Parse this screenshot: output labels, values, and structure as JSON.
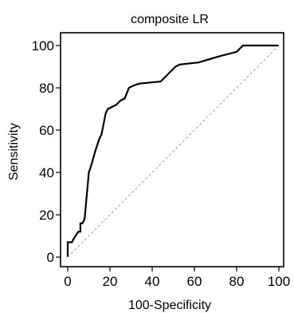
{
  "chart_data": {
    "type": "line",
    "title": "composite LR",
    "xlabel": "100-Specificity",
    "ylabel": "Sensitivity",
    "xlim": [
      0,
      100
    ],
    "ylim": [
      0,
      100
    ],
    "xticks": [
      0,
      20,
      40,
      60,
      80,
      100
    ],
    "yticks": [
      0,
      20,
      40,
      60,
      80,
      100
    ],
    "xtick_labels": [
      "0",
      "20",
      "40",
      "60",
      "80",
      "100"
    ],
    "ytick_labels": [
      "0",
      "20",
      "40",
      "60",
      "80",
      "100"
    ],
    "grid": false,
    "series": [
      {
        "role": "roc-curve",
        "color": "#000000",
        "x": [
          0,
          0,
          2,
          3,
          3,
          5,
          6,
          6,
          7,
          8,
          8,
          10,
          10,
          11,
          11,
          13,
          13,
          15,
          15,
          16,
          16,
          18,
          18,
          19,
          19,
          23,
          23,
          25,
          25,
          27,
          27,
          29,
          29,
          31,
          31,
          34,
          34,
          44,
          44,
          47,
          47,
          51,
          51,
          53,
          53,
          62,
          62,
          72,
          72,
          80,
          80,
          83,
          83,
          100
        ],
        "y": [
          0,
          7,
          7,
          9,
          9,
          12,
          12,
          16,
          16,
          18,
          18,
          40,
          40,
          43,
          43,
          50,
          50,
          56,
          56,
          58,
          58,
          68,
          68,
          70,
          70,
          72,
          72,
          74,
          74,
          75,
          75,
          80,
          80,
          81,
          81,
          82,
          82,
          83,
          83,
          86,
          86,
          90,
          90,
          91,
          91,
          92,
          92,
          95,
          95,
          97,
          97,
          100,
          100,
          100
        ]
      },
      {
        "role": "reference-diagonal",
        "color": "#999999",
        "dashed": true,
        "x": [
          0,
          100
        ],
        "y": [
          0,
          100
        ]
      }
    ]
  }
}
